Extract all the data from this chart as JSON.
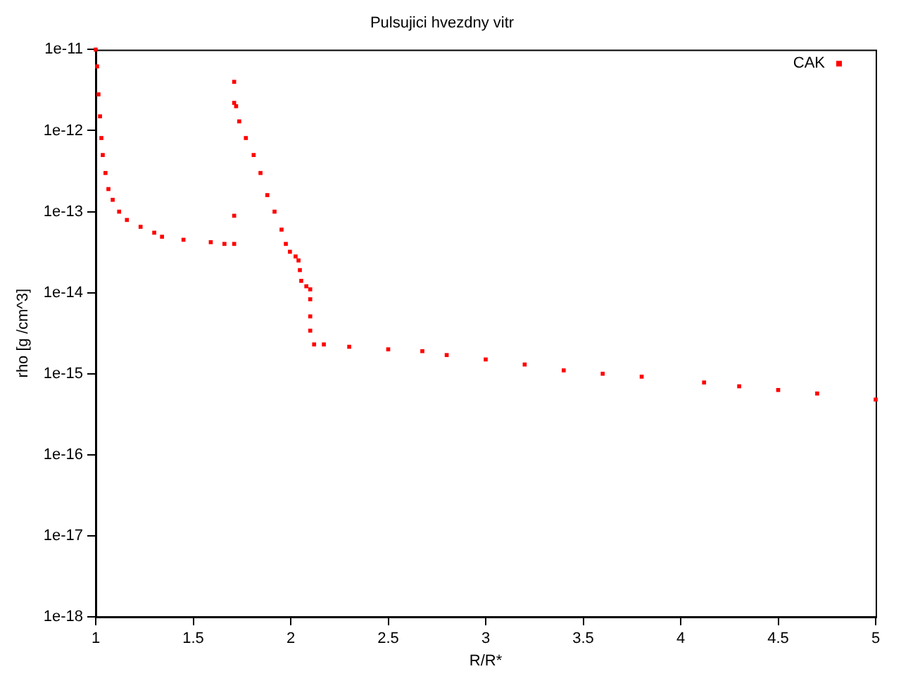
{
  "chart_data": {
    "type": "scatter",
    "title": "Pulsujici hvezdny vitr",
    "xlabel": "R/R*",
    "ylabel": "rho [g /cm^3]",
    "log": "y",
    "grid": false,
    "legend": "top right",
    "marker": "square",
    "xlim": [
      1,
      5
    ],
    "xticks": [
      1,
      1.5,
      2,
      2.5,
      3,
      3.5,
      4,
      4.5,
      5
    ],
    "ylim": [
      1e-18,
      1e-11
    ],
    "yticks": [
      {
        "value": 1e-18,
        "label": "1e-18"
      },
      {
        "value": 1e-17,
        "label": "1e-17"
      },
      {
        "value": 1e-16,
        "label": "1e-16"
      },
      {
        "value": 1e-15,
        "label": "1e-15"
      },
      {
        "value": 1e-14,
        "label": "1e-14"
      },
      {
        "value": 1e-13,
        "label": "1e-13"
      },
      {
        "value": 1e-12,
        "label": "1e-12"
      },
      {
        "value": 1e-11,
        "label": "1e-11"
      }
    ],
    "series": [
      {
        "name": "CAK",
        "color": "#ff0000",
        "x": [
          1.0,
          1.007,
          1.014,
          1.022,
          1.029,
          1.036,
          1.05,
          1.065,
          1.087,
          1.12,
          1.16,
          1.23,
          1.3,
          1.34,
          1.45,
          1.59,
          1.66,
          1.71,
          1.71,
          1.71,
          1.71,
          1.72,
          1.736,
          1.77,
          1.81,
          1.845,
          1.88,
          1.917,
          1.953,
          1.975,
          1.996,
          2.025,
          2.04,
          2.047,
          2.054,
          2.08,
          2.1,
          2.1,
          2.1,
          2.1,
          2.12,
          2.17,
          2.3,
          2.5,
          2.675,
          2.8,
          3.0,
          3.2,
          3.4,
          3.6,
          3.8,
          4.12,
          4.3,
          4.5,
          4.7,
          5.0
        ],
        "values": [
          1e-11,
          6.2e-12,
          2.8e-12,
          1.5e-12,
          8.1e-13,
          5e-13,
          3e-13,
          1.9e-13,
          1.4e-13,
          1e-13,
          7.9e-14,
          6.5e-14,
          5.5e-14,
          4.9e-14,
          4.5e-14,
          4.2e-14,
          4e-14,
          4e-14,
          8.9e-14,
          4e-12,
          2.2e-12,
          2e-12,
          1.3e-12,
          8.1e-13,
          5e-13,
          3e-13,
          1.6e-13,
          1e-13,
          6e-14,
          4e-14,
          3.2e-14,
          2.8e-14,
          2.5e-14,
          1.9e-14,
          1.4e-14,
          1.2e-14,
          1.1e-14,
          8.3e-15,
          5.1e-15,
          3.4e-15,
          2.3e-15,
          2.3e-15,
          2.15e-15,
          2e-15,
          1.9e-15,
          1.7e-15,
          1.5e-15,
          1.3e-15,
          1.1e-15,
          1e-15,
          9.2e-16,
          7.8e-16,
          7e-16,
          6.3e-16,
          5.7e-16,
          4.8e-16
        ]
      }
    ]
  }
}
